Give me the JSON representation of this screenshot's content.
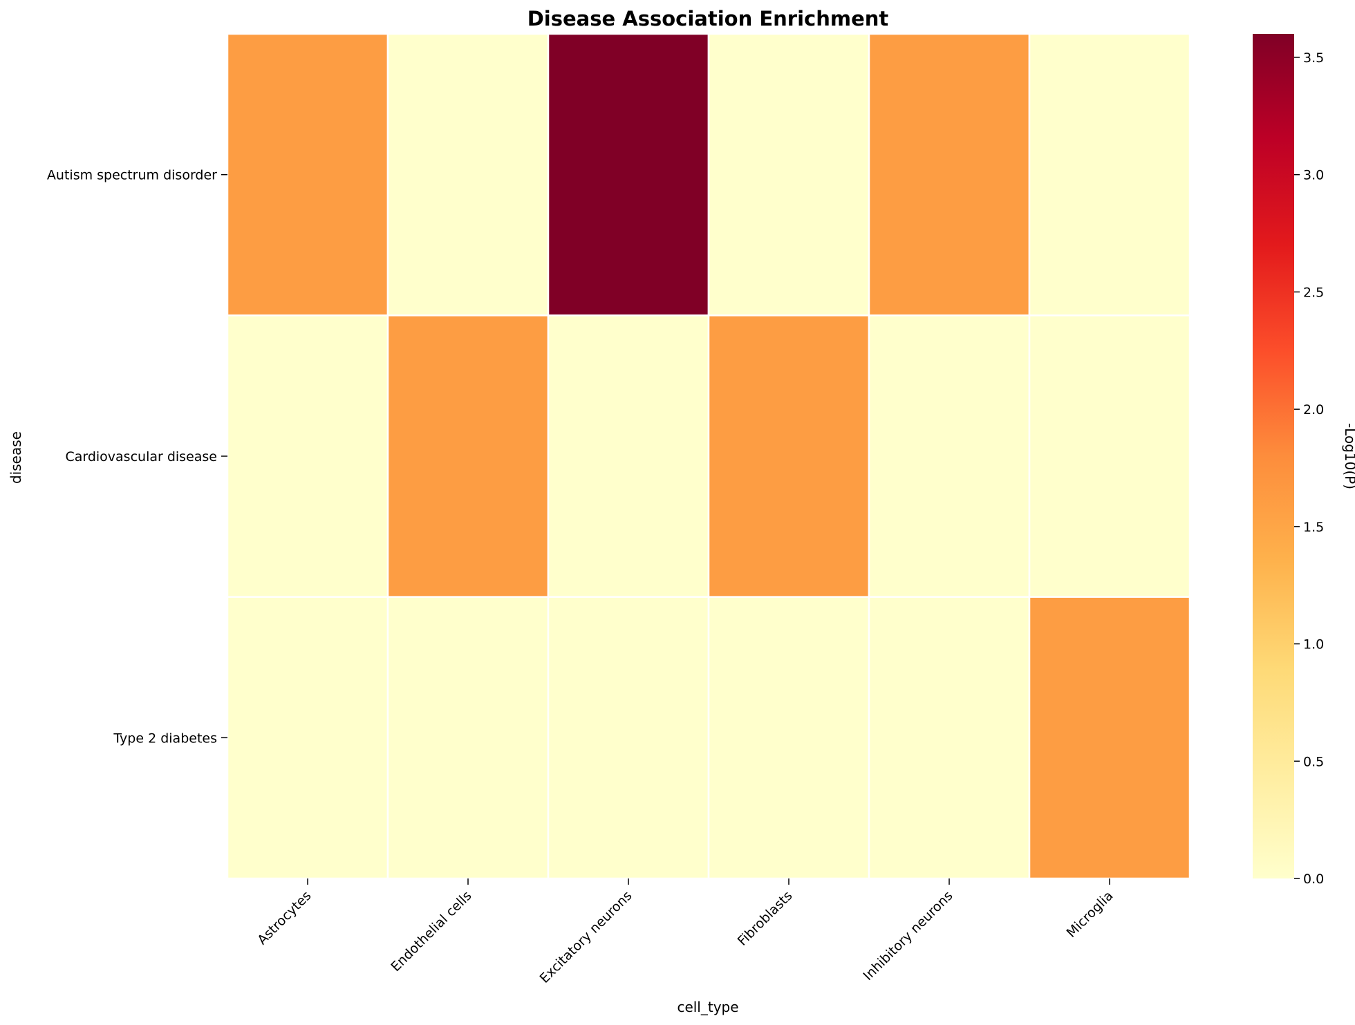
{
  "chart_data": {
    "type": "heatmap",
    "title": "Disease Association Enrichment",
    "xlabel": "cell_type",
    "ylabel": "disease",
    "x_categories": [
      "Astrocytes",
      "Endothelial cells",
      "Excitatory neurons",
      "Fibroblasts",
      "Inhibitory neurons",
      "Microglia"
    ],
    "y_categories": [
      "Autism spectrum disorder",
      "Cardiovascular disease",
      "Type 2 diabetes"
    ],
    "values": [
      [
        1.6,
        0.0,
        3.6,
        0.0,
        1.6,
        0.0
      ],
      [
        0.0,
        1.6,
        0.0,
        1.6,
        0.0,
        0.0
      ],
      [
        0.0,
        0.0,
        0.0,
        0.0,
        0.0,
        1.6
      ]
    ],
    "colormap": "YlOrRd",
    "colorbar": {
      "label": "-Log10(P)",
      "range": [
        0.0,
        3.6
      ],
      "ticks": [
        "0.0",
        "0.5",
        "1.0",
        "1.5",
        "2.0",
        "2.5",
        "3.0",
        "3.5"
      ]
    },
    "cell_border_color": "#ffffff"
  }
}
